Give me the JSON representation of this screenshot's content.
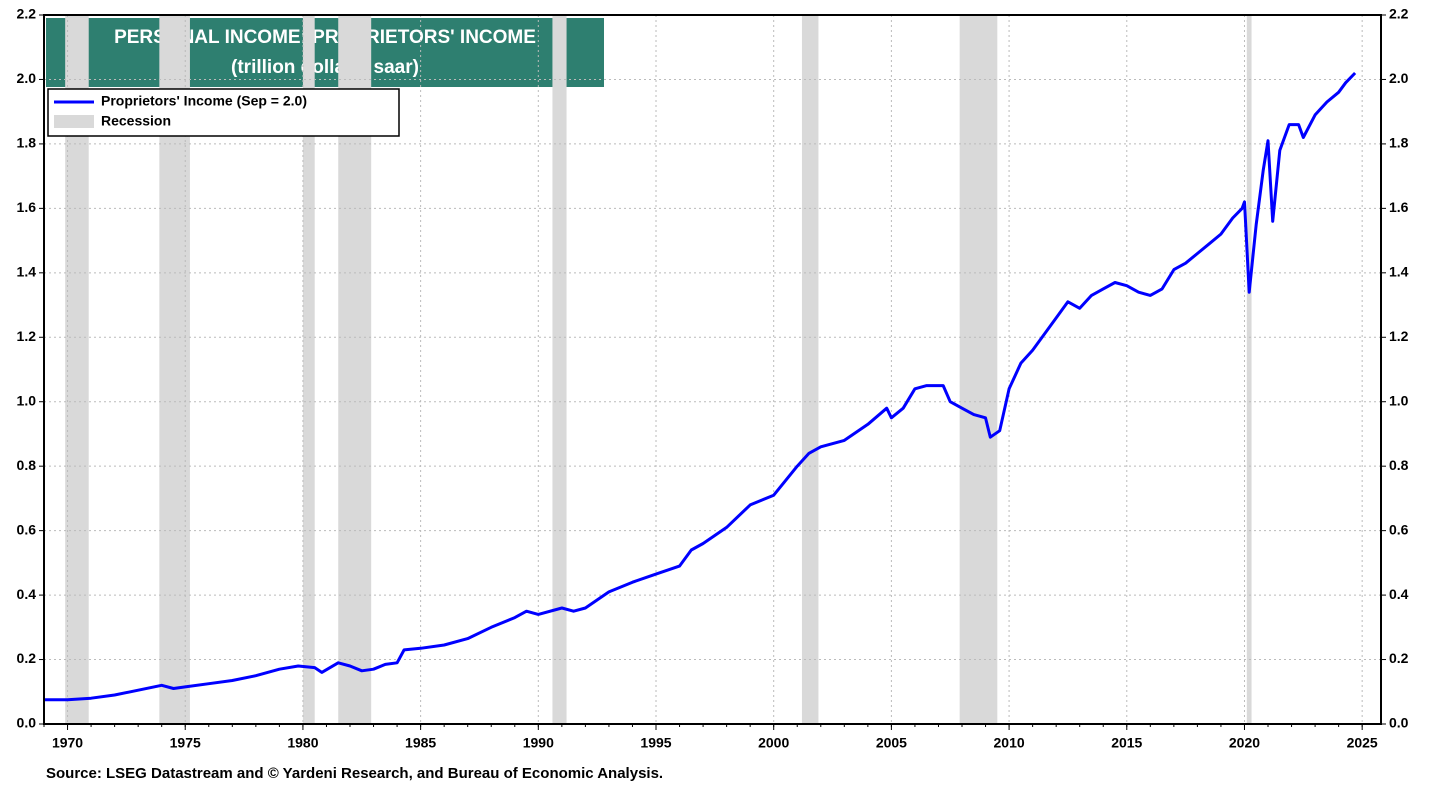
{
  "chart_data": {
    "type": "line",
    "title": "PERSONAL INCOME: PROPRIETORS' INCOME",
    "subtitle": "(trillion dollars, saar)",
    "source": "Source: LSEG Datastream and © Yardeni Research, and Bureau of Economic Analysis.",
    "xlim": [
      1969,
      2025.8
    ],
    "xticks": [
      1970,
      1975,
      1980,
      1985,
      1990,
      1995,
      2000,
      2005,
      2010,
      2015,
      2020,
      2025
    ],
    "ylim": [
      0,
      2.2
    ],
    "yticks": [
      {
        "value": 0,
        "label": "0.0"
      },
      {
        "value": 0.2,
        "label": "0.2"
      },
      {
        "value": 0.4,
        "label": "0.4"
      },
      {
        "value": 0.6,
        "label": "0.6"
      },
      {
        "value": 0.8,
        "label": "0.8"
      },
      {
        "value": 1,
        "label": "1.0"
      },
      {
        "value": 1.2,
        "label": "1.2"
      },
      {
        "value": 1.4,
        "label": "1.4"
      },
      {
        "value": 1.6,
        "label": "1.6"
      },
      {
        "value": 1.8,
        "label": "1.8"
      },
      {
        "value": 2,
        "label": "2.0"
      },
      {
        "value": 2.2,
        "label": "2.2"
      }
    ],
    "y2lim": [
      0,
      2.2
    ],
    "y2ticks": [
      {
        "value": 0,
        "label": "0.0"
      },
      {
        "value": 0.2,
        "label": "0.2"
      },
      {
        "value": 0.4,
        "label": "0.4"
      },
      {
        "value": 0.6,
        "label": "0.6"
      },
      {
        "value": 0.8,
        "label": "0.8"
      },
      {
        "value": 1,
        "label": "1.0"
      },
      {
        "value": 1.2,
        "label": "1.2"
      },
      {
        "value": 1.4,
        "label": "1.4"
      },
      {
        "value": 1.6,
        "label": "1.6"
      },
      {
        "value": 1.8,
        "label": "1.8"
      },
      {
        "value": 2,
        "label": "2.0"
      },
      {
        "value": 2.2,
        "label": "2.2"
      }
    ],
    "grid": true,
    "recession_label": "Recession",
    "recession_color": "#d9d9d9",
    "recessions": [
      [
        1969.9,
        1970.9
      ],
      [
        1973.9,
        1975.2
      ],
      [
        1980.0,
        1980.5
      ],
      [
        1981.5,
        1982.9
      ],
      [
        1990.6,
        1991.2
      ],
      [
        2001.2,
        2001.9
      ],
      [
        2007.9,
        2009.5
      ],
      [
        2020.1,
        2020.3
      ]
    ],
    "x": [
      1969.0,
      1970,
      1971,
      1972,
      1973,
      1974,
      1974.5,
      1975,
      1976,
      1977,
      1978,
      1979,
      1979.8,
      1980.5,
      1980.8,
      1981.5,
      1982,
      1982.5,
      1983,
      1983.5,
      1984,
      1984.3,
      1985,
      1986,
      1987,
      1988,
      1989,
      1989.5,
      1990,
      1991,
      1991.5,
      1992,
      1993,
      1994,
      1995,
      1996,
      1996.5,
      1997,
      1998,
      1999,
      2000,
      2001,
      2001.5,
      2002,
      2003,
      2004,
      2004.8,
      2005,
      2005.5,
      2006,
      2006.5,
      2007.2,
      2007.5,
      2008,
      2008.5,
      2009,
      2009.2,
      2009.6,
      2010,
      2010.5,
      2011,
      2012,
      2012.5,
      2013,
      2013.5,
      2014,
      2014.5,
      2015,
      2015.5,
      2016,
      2016.5,
      2017,
      2017.5,
      2018,
      2018.5,
      2019,
      2019.5,
      2019.9,
      2020.0,
      2020.2,
      2020.5,
      2020.8,
      2021.0,
      2021.2,
      2021.5,
      2021.9,
      2022.3,
      2022.5,
      2023,
      2023.5,
      2024,
      2024.3,
      2024.7
    ],
    "series": [
      {
        "name": "Proprietors' Income (Sep = 2.0)",
        "color": "#0000ff",
        "values": [
          0.075,
          0.075,
          0.08,
          0.09,
          0.105,
          0.12,
          0.11,
          0.115,
          0.125,
          0.135,
          0.15,
          0.17,
          0.18,
          0.175,
          0.16,
          0.19,
          0.18,
          0.165,
          0.17,
          0.185,
          0.19,
          0.23,
          0.235,
          0.245,
          0.265,
          0.3,
          0.33,
          0.35,
          0.34,
          0.36,
          0.35,
          0.36,
          0.41,
          0.44,
          0.465,
          0.49,
          0.54,
          0.56,
          0.61,
          0.68,
          0.71,
          0.8,
          0.84,
          0.86,
          0.88,
          0.93,
          0.98,
          0.95,
          0.98,
          1.04,
          1.05,
          1.05,
          1.0,
          0.98,
          0.96,
          0.95,
          0.89,
          0.91,
          1.04,
          1.12,
          1.16,
          1.26,
          1.31,
          1.29,
          1.33,
          1.35,
          1.37,
          1.36,
          1.34,
          1.33,
          1.35,
          1.41,
          1.43,
          1.46,
          1.49,
          1.52,
          1.57,
          1.6,
          1.62,
          1.34,
          1.55,
          1.72,
          1.81,
          1.56,
          1.78,
          1.86,
          1.86,
          1.82,
          1.89,
          1.93,
          1.96,
          1.99,
          2.02
        ]
      }
    ]
  }
}
